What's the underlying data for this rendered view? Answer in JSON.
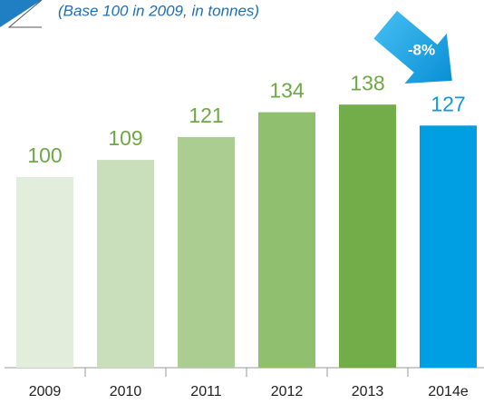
{
  "chart_data": {
    "type": "bar",
    "subtitle": "(Base 100 in 2009, in tonnes)",
    "categories": [
      "2009",
      "2010",
      "2011",
      "2012",
      "2013",
      "2014e"
    ],
    "values": [
      100,
      109,
      121,
      134,
      138,
      127
    ],
    "colors": [
      "#e3eddb",
      "#c9dfbb",
      "#abcd91",
      "#8fbf6f",
      "#73ad4a",
      "#009fe3"
    ],
    "label_colors": [
      "#6ea844",
      "#6ea844",
      "#6ea844",
      "#6ea844",
      "#6ea844",
      "#0a9ad9"
    ],
    "ylim": [
      0,
      190
    ],
    "annotation": "-8%"
  }
}
